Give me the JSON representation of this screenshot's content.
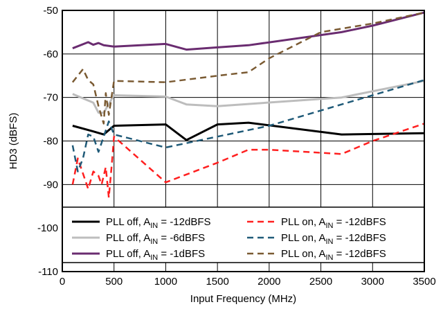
{
  "chart_data": {
    "type": "line",
    "xlabel": "Input Frequency (MHz)",
    "ylabel": "HD3 (dBFS)",
    "xlim": [
      0,
      3500
    ],
    "ylim": [
      -110,
      -50
    ],
    "xticks": [
      0,
      500,
      1000,
      1500,
      2000,
      2500,
      3000,
      3500
    ],
    "yticks": [
      -110,
      -100,
      -90,
      -80,
      -70,
      -60,
      -50
    ],
    "xtick_labels": [
      "0",
      "500",
      "1000",
      "1500",
      "2000",
      "2500",
      "3000",
      "3500"
    ],
    "ytick_labels": [
      "-110",
      "-100",
      "-90",
      "-80",
      "-70",
      "-60",
      "-50"
    ],
    "grid": true,
    "legend_position": "bottom",
    "series": [
      {
        "legend_parts": [
          "PLL off, A",
          "IN",
          " = -12dBFS"
        ],
        "color": "#000000",
        "dash": "solid",
        "width": 3,
        "x": [
          100,
          300,
          400,
          500,
          1000,
          1200,
          1500,
          1800,
          2700,
          3500
        ],
        "y": [
          -76.5,
          -77.8,
          -78.5,
          -76.5,
          -76.2,
          -79.8,
          -76.2,
          -75.8,
          -78.5,
          -78.2
        ]
      },
      {
        "legend_parts": [
          "PLL on, A",
          "IN",
          " = -12dBFS"
        ],
        "color": "#ff1f1f",
        "dash": "dashed",
        "width": 2.5,
        "x": [
          100,
          150,
          250,
          300,
          350,
          380,
          420,
          450,
          480,
          500,
          1000,
          1500,
          1800,
          2000,
          2700,
          3000,
          3500
        ],
        "y": [
          -90,
          -84,
          -91,
          -87,
          -88,
          -90,
          -86,
          -93,
          -85,
          -79,
          -89.5,
          -85,
          -82,
          -82,
          -83,
          -80,
          -76
        ]
      },
      {
        "legend_parts": [
          "PLL off, A",
          "IN",
          " = -6dBFS"
        ],
        "color": "#bdbdbd",
        "dash": "solid",
        "width": 3,
        "x": [
          100,
          300,
          350,
          400,
          450,
          500,
          1000,
          1200,
          1500,
          2700,
          3500
        ],
        "y": [
          -69.2,
          -71.2,
          -73.5,
          -73.5,
          -71.5,
          -69.5,
          -69.8,
          -71.6,
          -72,
          -70,
          -66.2
        ]
      },
      {
        "legend_parts": [
          "PLL on, A",
          "IN",
          " = -12dBFS"
        ],
        "color": "#1f5a78",
        "dash": "dashed",
        "width": 2.5,
        "x": [
          100,
          150,
          200,
          250,
          300,
          350,
          400,
          450,
          500,
          1000,
          1500,
          2000,
          2500,
          3000,
          3500
        ],
        "y": [
          -81,
          -87,
          -84,
          -78.5,
          -79,
          -82.5,
          -79,
          -75.5,
          -78.5,
          -81.5,
          -79,
          -76.5,
          -73,
          -69.5,
          -66
        ]
      },
      {
        "legend_parts": [
          "PLL off, A",
          "IN",
          " = -1dBFS"
        ],
        "color": "#6a2c70",
        "dash": "solid",
        "width": 3,
        "x": [
          100,
          250,
          300,
          350,
          400,
          500,
          1000,
          1200,
          1500,
          1800,
          2700,
          3000,
          3500
        ],
        "y": [
          -58.7,
          -57.3,
          -57.9,
          -57.5,
          -58,
          -58.3,
          -57.7,
          -59,
          -58.5,
          -58,
          -55,
          -53.5,
          -50.5
        ]
      },
      {
        "legend_parts": [
          "PLL on, A",
          "IN",
          " = -12dBFS"
        ],
        "color": "#7a5a32",
        "dash": "dashed",
        "width": 2.5,
        "x": [
          100,
          200,
          250,
          300,
          350,
          400,
          420,
          450,
          500,
          1000,
          1500,
          1800,
          2000,
          2500,
          3000,
          3500
        ],
        "y": [
          -66.5,
          -63.5,
          -66,
          -67,
          -72,
          -76,
          -69,
          -74,
          -66.2,
          -66.5,
          -65,
          -64.2,
          -61,
          -55,
          -53,
          -50.5
        ]
      }
    ]
  }
}
